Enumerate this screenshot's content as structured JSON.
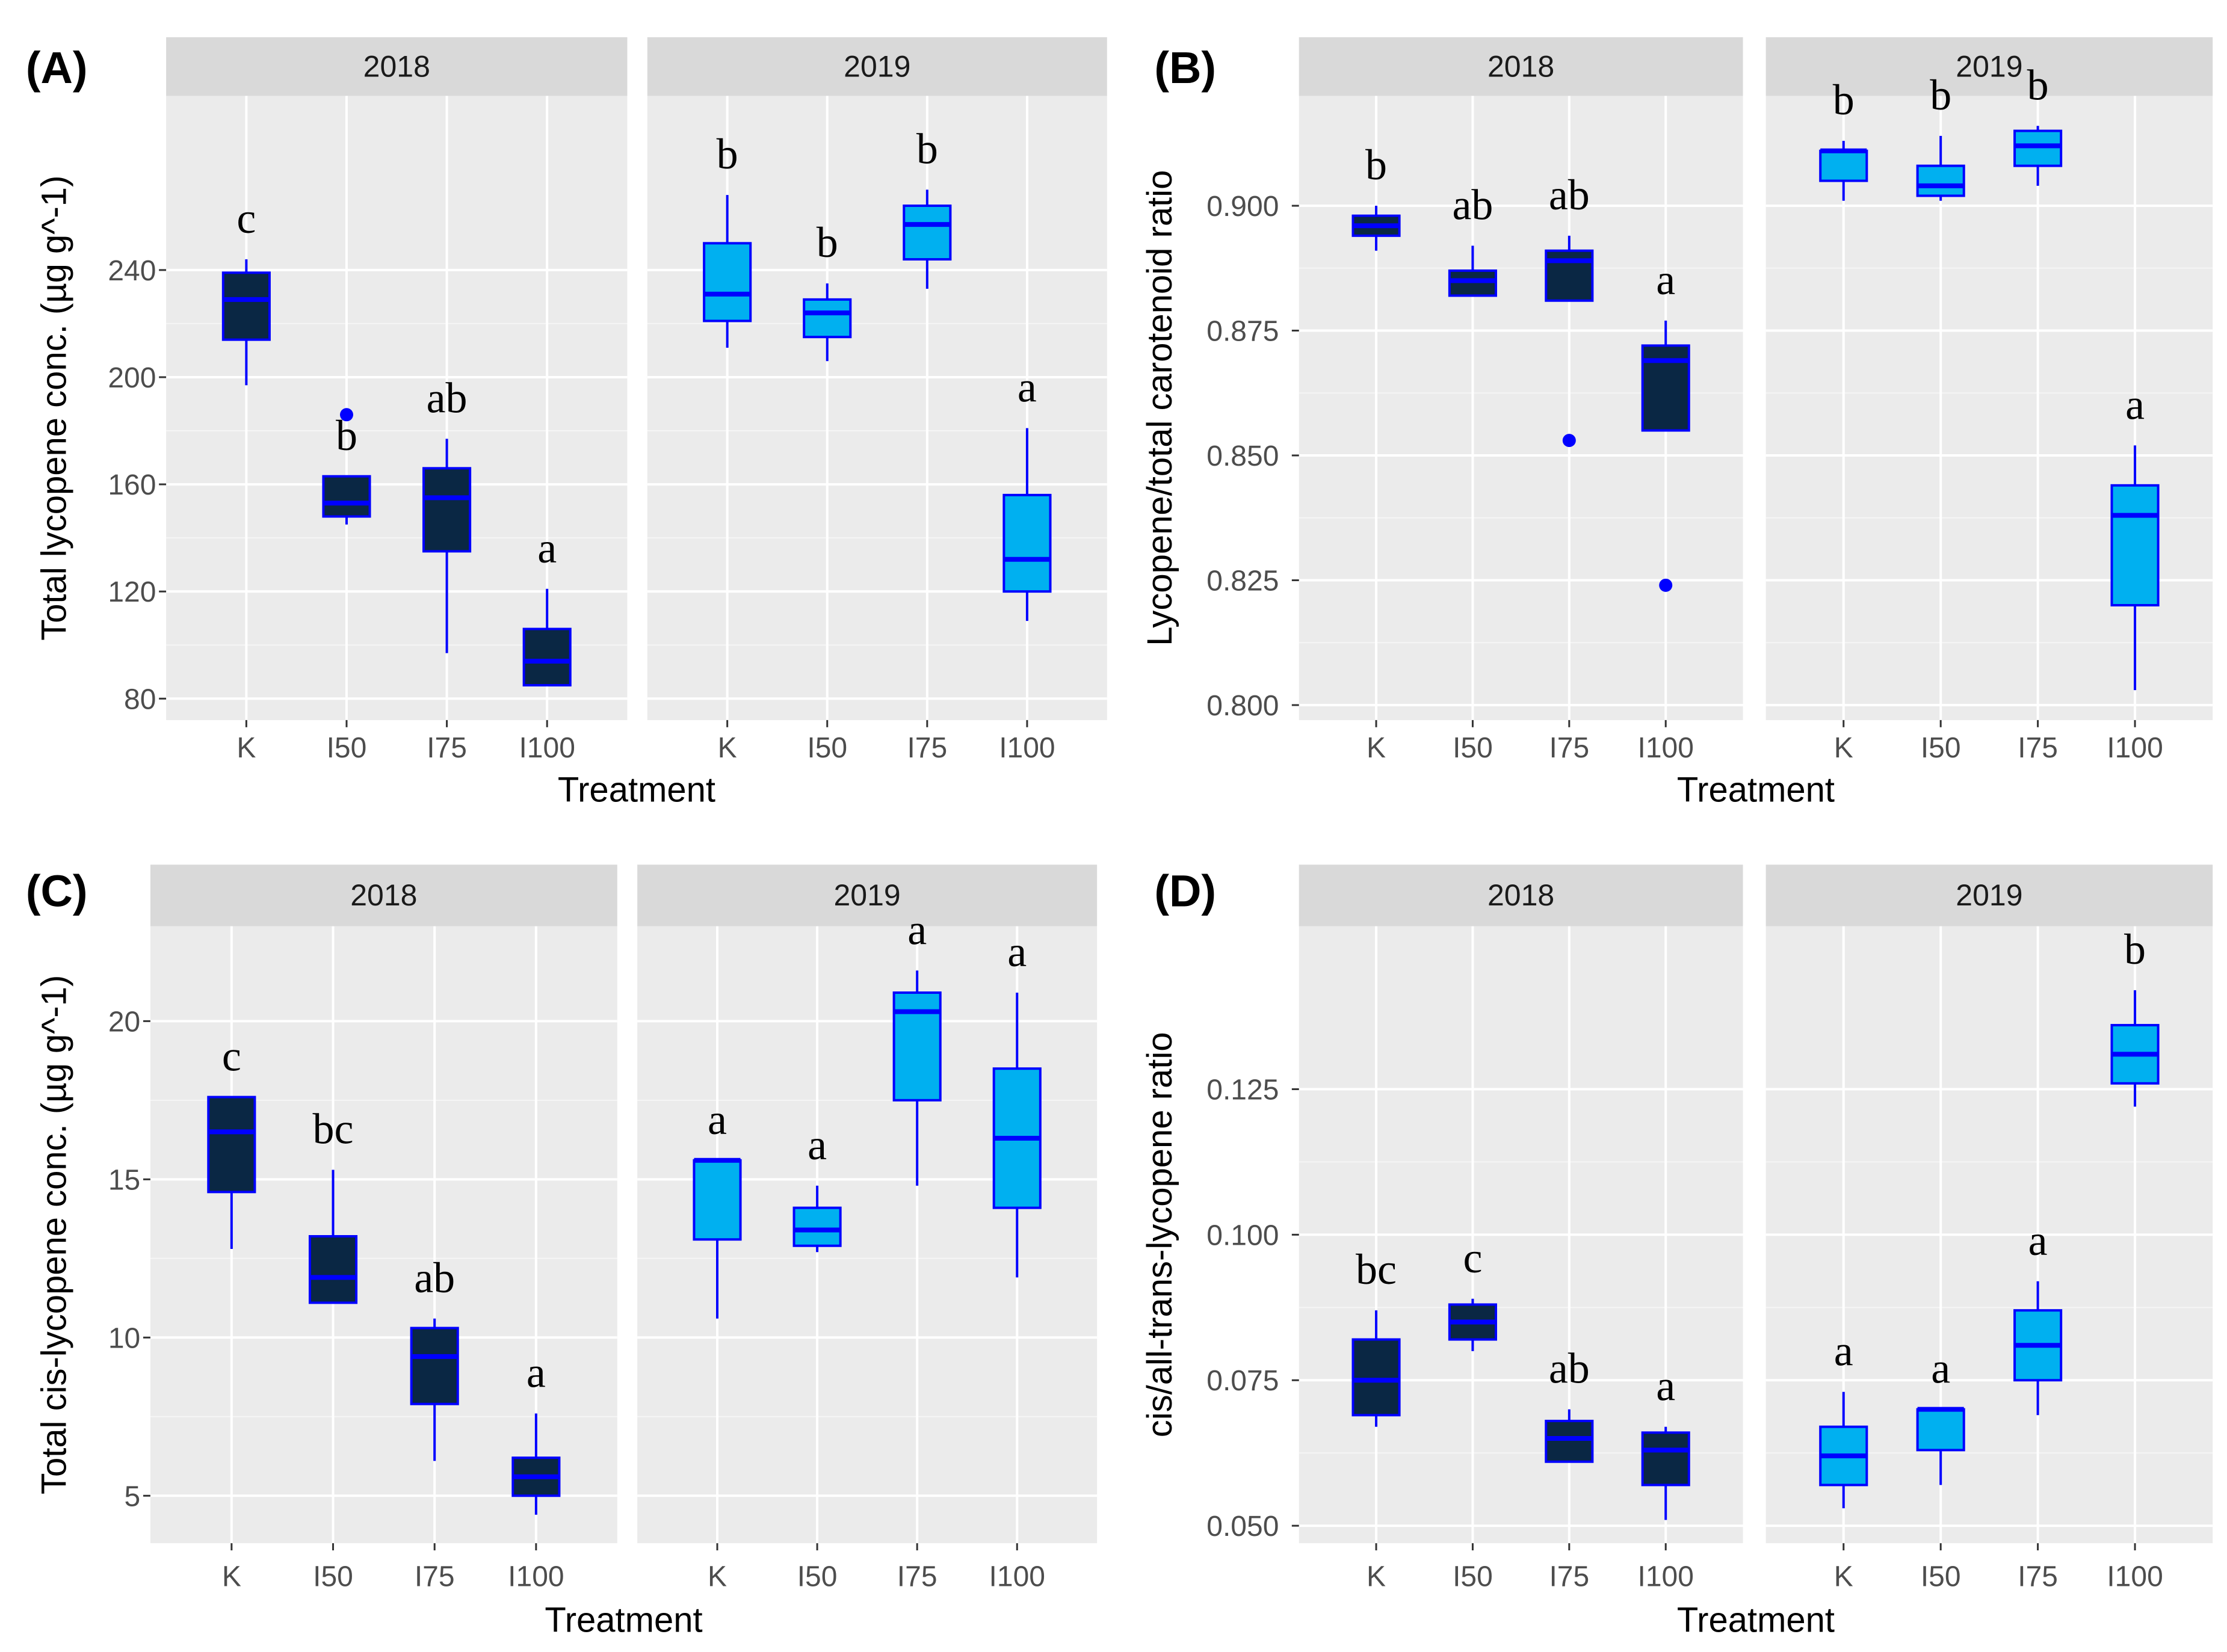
{
  "figure": {
    "treatment_categories": [
      "K",
      "I50",
      "I75",
      "I100"
    ],
    "facet_years": [
      "2018",
      "2019"
    ],
    "colors": {
      "year_2018_fill": "#0a2744",
      "year_2019_fill": "#00b0f0",
      "box_outline": "#0000ff",
      "outlier": "#0000ff",
      "panel_background": "#ebebeb",
      "grid_major": "#ffffff",
      "strip_background": "#d9d9d9"
    }
  },
  "chart_data": [
    {
      "panel": "(A)",
      "type": "boxplot",
      "title": "",
      "xlabel": "Treatment",
      "ylabel": "Total lycopene conc.  (µg g^-1)",
      "ylim": [
        72,
        305
      ],
      "yticks": [
        80,
        120,
        160,
        200,
        240
      ],
      "ytick_labels": [
        "80",
        "120",
        "160",
        "200",
        "240"
      ],
      "categories": [
        "K",
        "I50",
        "I75",
        "I100"
      ],
      "facets": [
        {
          "year": "2018",
          "boxes": [
            {
              "cat": "K",
              "min": 197,
              "q1": 214,
              "median": 229,
              "q3": 239,
              "max": 244,
              "outliers": [],
              "label": "c"
            },
            {
              "cat": "I50",
              "min": 145,
              "q1": 148,
              "median": 153,
              "q3": 163,
              "max": 163,
              "outliers": [
                186
              ],
              "label": "b"
            },
            {
              "cat": "I75",
              "min": 97,
              "q1": 135,
              "median": 155,
              "q3": 166,
              "max": 177,
              "outliers": [],
              "label": "ab"
            },
            {
              "cat": "I100",
              "min": 85,
              "q1": 85,
              "median": 94,
              "q3": 106,
              "max": 121,
              "outliers": [],
              "label": "a"
            }
          ]
        },
        {
          "year": "2019",
          "boxes": [
            {
              "cat": "K",
              "min": 211,
              "q1": 221,
              "median": 231,
              "q3": 250,
              "max": 268,
              "outliers": [],
              "label": "b"
            },
            {
              "cat": "I50",
              "min": 206,
              "q1": 215,
              "median": 224,
              "q3": 229,
              "max": 235,
              "outliers": [],
              "label": "b"
            },
            {
              "cat": "I75",
              "min": 233,
              "q1": 244,
              "median": 257,
              "q3": 264,
              "max": 270,
              "outliers": [],
              "label": "b"
            },
            {
              "cat": "I100",
              "min": 109,
              "q1": 120,
              "median": 132,
              "q3": 156,
              "max": 181,
              "outliers": [],
              "label": "a"
            }
          ]
        }
      ]
    },
    {
      "panel": "(B)",
      "type": "boxplot",
      "title": "",
      "xlabel": "Treatment",
      "ylabel": "Lycopene/total carotenoid ratio",
      "ylim": [
        0.797,
        0.922
      ],
      "yticks": [
        0.8,
        0.825,
        0.85,
        0.875,
        0.9
      ],
      "ytick_labels": [
        "0.800",
        "0.825",
        "0.850",
        "0.875",
        "0.900"
      ],
      "categories": [
        "K",
        "I50",
        "I75",
        "I100"
      ],
      "facets": [
        {
          "year": "2018",
          "boxes": [
            {
              "cat": "K",
              "min": 0.891,
              "q1": 0.894,
              "median": 0.896,
              "q3": 0.898,
              "max": 0.9,
              "outliers": [],
              "label": "b"
            },
            {
              "cat": "I50",
              "min": 0.882,
              "q1": 0.882,
              "median": 0.885,
              "q3": 0.887,
              "max": 0.892,
              "outliers": [],
              "label": "ab"
            },
            {
              "cat": "I75",
              "min": 0.881,
              "q1": 0.881,
              "median": 0.889,
              "q3": 0.891,
              "max": 0.894,
              "outliers": [
                0.853
              ],
              "label": "ab"
            },
            {
              "cat": "I100",
              "min": 0.855,
              "q1": 0.855,
              "median": 0.869,
              "q3": 0.872,
              "max": 0.877,
              "outliers": [
                0.824
              ],
              "label": "a"
            }
          ]
        },
        {
          "year": "2019",
          "boxes": [
            {
              "cat": "K",
              "min": 0.901,
              "q1": 0.905,
              "median": 0.911,
              "q3": 0.911,
              "max": 0.913,
              "outliers": [],
              "label": "b"
            },
            {
              "cat": "I50",
              "min": 0.901,
              "q1": 0.902,
              "median": 0.904,
              "q3": 0.908,
              "max": 0.914,
              "outliers": [],
              "label": "b"
            },
            {
              "cat": "I75",
              "min": 0.904,
              "q1": 0.908,
              "median": 0.912,
              "q3": 0.915,
              "max": 0.916,
              "outliers": [],
              "label": "b"
            },
            {
              "cat": "I100",
              "min": 0.803,
              "q1": 0.82,
              "median": 0.838,
              "q3": 0.844,
              "max": 0.852,
              "outliers": [],
              "label": "a"
            }
          ]
        }
      ]
    },
    {
      "panel": "(C)",
      "type": "boxplot",
      "title": "",
      "xlabel": "Treatment",
      "ylabel": "Total cis-lycopene conc.  (µg g^-1)",
      "ylim": [
        3.5,
        23
      ],
      "yticks": [
        5,
        10,
        15,
        20
      ],
      "ytick_labels": [
        "5",
        "10",
        "15",
        "20"
      ],
      "categories": [
        "K",
        "I50",
        "I75",
        "I100"
      ],
      "facets": [
        {
          "year": "2018",
          "boxes": [
            {
              "cat": "K",
              "min": 12.8,
              "q1": 14.6,
              "median": 16.5,
              "q3": 17.6,
              "max": 17.6,
              "outliers": [],
              "label": "c"
            },
            {
              "cat": "I50",
              "min": 11.1,
              "q1": 11.1,
              "median": 11.9,
              "q3": 13.2,
              "max": 15.3,
              "outliers": [],
              "label": "bc"
            },
            {
              "cat": "I75",
              "min": 6.1,
              "q1": 7.9,
              "median": 9.4,
              "q3": 10.3,
              "max": 10.6,
              "outliers": [],
              "label": "ab"
            },
            {
              "cat": "I100",
              "min": 4.4,
              "q1": 5.0,
              "median": 5.6,
              "q3": 6.2,
              "max": 7.6,
              "outliers": [],
              "label": "a"
            }
          ]
        },
        {
          "year": "2019",
          "boxes": [
            {
              "cat": "K",
              "min": 10.6,
              "q1": 13.1,
              "median": 15.6,
              "q3": 15.6,
              "max": 15.6,
              "outliers": [],
              "label": "a"
            },
            {
              "cat": "I50",
              "min": 12.7,
              "q1": 12.9,
              "median": 13.4,
              "q3": 14.1,
              "max": 14.8,
              "outliers": [],
              "label": "a"
            },
            {
              "cat": "I75",
              "min": 14.8,
              "q1": 17.5,
              "median": 20.3,
              "q3": 20.9,
              "max": 21.6,
              "outliers": [],
              "label": "a"
            },
            {
              "cat": "I100",
              "min": 11.9,
              "q1": 14.1,
              "median": 16.3,
              "q3": 18.5,
              "max": 20.9,
              "outliers": [],
              "label": "a"
            }
          ]
        }
      ]
    },
    {
      "panel": "(D)",
      "type": "boxplot",
      "title": "",
      "xlabel": "Treatment",
      "ylabel": "cis/all-trans-lycopene ratio",
      "ylim": [
        0.047,
        0.153
      ],
      "yticks": [
        0.05,
        0.075,
        0.1,
        0.125
      ],
      "ytick_labels": [
        "0.050",
        "0.075",
        "0.100",
        "0.125"
      ],
      "categories": [
        "K",
        "I50",
        "I75",
        "I100"
      ],
      "facets": [
        {
          "year": "2018",
          "boxes": [
            {
              "cat": "K",
              "min": 0.067,
              "q1": 0.069,
              "median": 0.075,
              "q3": 0.082,
              "max": 0.087,
              "outliers": [],
              "label": "bc"
            },
            {
              "cat": "I50",
              "min": 0.08,
              "q1": 0.082,
              "median": 0.085,
              "q3": 0.088,
              "max": 0.089,
              "outliers": [],
              "label": "c"
            },
            {
              "cat": "I75",
              "min": 0.061,
              "q1": 0.061,
              "median": 0.065,
              "q3": 0.068,
              "max": 0.07,
              "outliers": [],
              "label": "ab"
            },
            {
              "cat": "I100",
              "min": 0.051,
              "q1": 0.057,
              "median": 0.063,
              "q3": 0.066,
              "max": 0.067,
              "outliers": [],
              "label": "a"
            }
          ]
        },
        {
          "year": "2019",
          "boxes": [
            {
              "cat": "K",
              "min": 0.053,
              "q1": 0.057,
              "median": 0.062,
              "q3": 0.067,
              "max": 0.073,
              "outliers": [],
              "label": "a"
            },
            {
              "cat": "I50",
              "min": 0.057,
              "q1": 0.063,
              "median": 0.07,
              "q3": 0.07,
              "max": 0.07,
              "outliers": [],
              "label": "a"
            },
            {
              "cat": "I75",
              "min": 0.069,
              "q1": 0.075,
              "median": 0.081,
              "q3": 0.087,
              "max": 0.092,
              "outliers": [],
              "label": "a"
            },
            {
              "cat": "I100",
              "min": 0.122,
              "q1": 0.126,
              "median": 0.131,
              "q3": 0.136,
              "max": 0.142,
              "outliers": [],
              "label": "b"
            }
          ]
        }
      ]
    }
  ]
}
